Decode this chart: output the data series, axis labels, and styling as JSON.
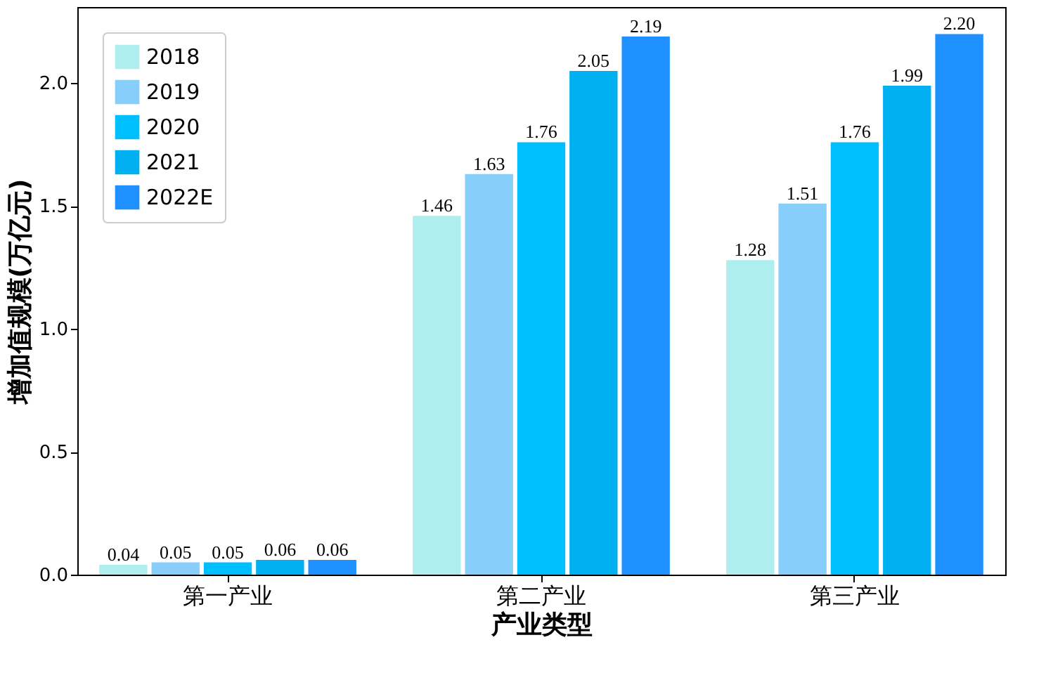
{
  "chart_data": {
    "type": "bar",
    "xlabel": "产业类型",
    "ylabel": "增加值规模(万亿元)",
    "categories": [
      "第一产业",
      "第二产业",
      "第三产业"
    ],
    "series": [
      {
        "name": "2018",
        "color": "#afeeee",
        "values": [
          0.04,
          1.46,
          1.28
        ],
        "value_labels": [
          "0.04",
          "1.46",
          "1.28"
        ]
      },
      {
        "name": "2019",
        "color": "#87cefa",
        "values": [
          0.05,
          1.63,
          1.51
        ],
        "value_labels": [
          "0.05",
          "1.63",
          "1.51"
        ]
      },
      {
        "name": "2020",
        "color": "#00bfff",
        "values": [
          0.05,
          1.76,
          1.76
        ],
        "value_labels": [
          "0.05",
          "1.76",
          "1.76"
        ]
      },
      {
        "name": "2021",
        "color": "#00b0f0",
        "values": [
          0.06,
          2.05,
          1.99
        ],
        "value_labels": [
          "0.06",
          "2.05",
          "1.99"
        ]
      },
      {
        "name": "2022E",
        "color": "#1e90ff",
        "values": [
          0.06,
          2.19,
          2.2
        ],
        "value_labels": [
          "0.06",
          "2.19",
          "2.20"
        ]
      }
    ],
    "ylim": [
      0,
      2.31
    ],
    "yticks": [
      {
        "value": 0,
        "label": "0.0"
      },
      {
        "value": 0.5,
        "label": "0.5"
      },
      {
        "value": 1,
        "label": "1.0"
      },
      {
        "value": 1.5,
        "label": "1.5"
      },
      {
        "value": 2,
        "label": "2.0"
      }
    ],
    "legend": "top left",
    "grid": false
  }
}
